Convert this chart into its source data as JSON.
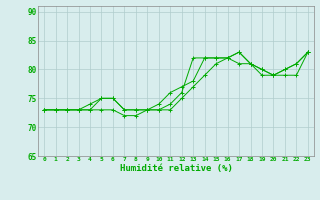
{
  "xlabel": "Humidité relative (%)",
  "ylabel": "",
  "xlim": [
    -0.5,
    23.5
  ],
  "ylim": [
    65,
    91
  ],
  "yticks": [
    65,
    70,
    75,
    80,
    85,
    90
  ],
  "xticks": [
    0,
    1,
    2,
    3,
    4,
    5,
    6,
    7,
    8,
    9,
    10,
    11,
    12,
    13,
    14,
    15,
    16,
    17,
    18,
    19,
    20,
    21,
    22,
    23
  ],
  "bg_color": "#d8eded",
  "grid_color": "#b0cccc",
  "line_color": "#00aa00",
  "lines": [
    [
      73,
      73,
      73,
      73,
      73,
      75,
      75,
      73,
      73,
      73,
      73,
      74,
      76,
      82,
      82,
      82,
      82,
      83,
      81,
      80,
      79,
      80,
      81,
      83
    ],
    [
      73,
      73,
      73,
      73,
      74,
      75,
      75,
      73,
      73,
      73,
      74,
      76,
      77,
      78,
      82,
      82,
      82,
      81,
      81,
      79,
      79,
      80,
      81,
      83
    ],
    [
      73,
      73,
      73,
      73,
      73,
      73,
      73,
      72,
      72,
      73,
      73,
      73,
      75,
      77,
      79,
      81,
      82,
      83,
      81,
      80,
      79,
      79,
      79,
      83
    ]
  ]
}
